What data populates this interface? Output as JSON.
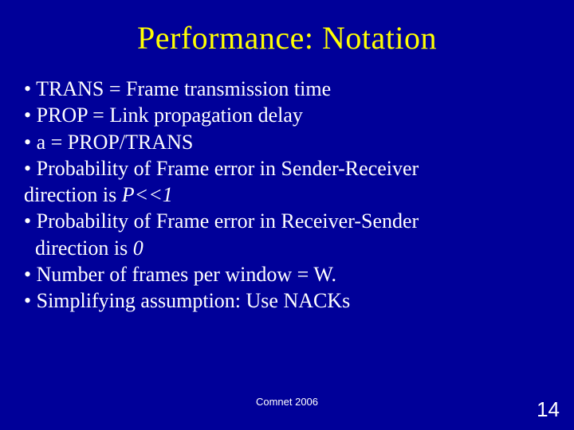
{
  "colors": {
    "background": "#000099",
    "title": "#ffff00",
    "body": "#ffffff",
    "footer": "#ffffff",
    "pagenum": "#ffffff"
  },
  "typography": {
    "title_fontsize": 40,
    "body_fontsize": 26,
    "footer_fontsize": 13,
    "pagenum_fontsize": 26,
    "body_font": "Times New Roman",
    "footer_font": "Arial"
  },
  "title": "Performance: Notation",
  "bullets": {
    "b0": "• TRANS = Frame transmission time",
    "b1": "• PROP = Link propagation delay",
    "b2": "• a = PROP/TRANS",
    "b3a": "• Probability of Frame error in Sender-Receiver",
    "b3b_pre": "direction is ",
    "b3b_em": "P<<1",
    "b4a": "• Probability of Frame error in Receiver-Sender",
    "b4b_pre": " direction is ",
    "b4b_em": "0",
    "b5": "• Number of frames per window = W.",
    "b6": "• Simplifying assumption: Use NACKs"
  },
  "footer": "Comnet 2006",
  "page_number": "14"
}
